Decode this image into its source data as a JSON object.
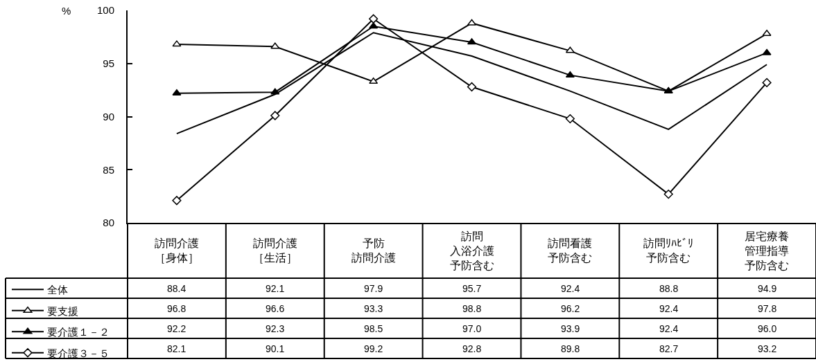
{
  "chart_data": {
    "type": "line",
    "ylabel": "%",
    "categories": [
      "訪問介護［身体］",
      "訪問介護［生活］",
      "予防訪問介護",
      "訪問入浴介護予防含む",
      "訪問看護予防含む",
      "訪問ﾘﾊﾋﾞﾘ予防含む",
      "居宅療養管理指導予防含む"
    ],
    "series": [
      {
        "name": "全体",
        "color": "#000000",
        "marker": "none",
        "values": [
          88.4,
          92.1,
          97.9,
          95.7,
          92.4,
          88.8,
          94.9
        ],
        "value_labels": [
          "88.4",
          "92.1",
          "97.9",
          "95.7",
          "92.4",
          "88.8",
          "94.9"
        ]
      },
      {
        "name": "要支援",
        "color": "#000000",
        "marker": "triangle-open",
        "values": [
          96.8,
          96.6,
          93.3,
          98.8,
          96.2,
          92.4,
          97.8
        ],
        "value_labels": [
          "96.8",
          "96.6",
          "93.3",
          "98.8",
          "96.2",
          "92.4",
          "97.8"
        ]
      },
      {
        "name": "要介護１－２",
        "color": "#000000",
        "marker": "triangle",
        "values": [
          92.2,
          92.3,
          98.5,
          97.0,
          93.9,
          92.4,
          96.0
        ],
        "value_labels": [
          "92.2",
          "92.3",
          "98.5",
          "97.0",
          "93.9",
          "92.4",
          "96.0"
        ]
      },
      {
        "name": "要介護３－５",
        "color": "#000000",
        "marker": "diamond-open",
        "values": [
          82.1,
          90.1,
          99.2,
          92.8,
          89.8,
          82.7,
          93.2
        ],
        "value_labels": [
          "82.1",
          "90.1",
          "99.2",
          "92.8",
          "89.8",
          "82.7",
          "93.2"
        ]
      }
    ],
    "ylim": [
      80,
      100
    ],
    "yticks": [
      80,
      85,
      90,
      95,
      100
    ],
    "legend": "bottom left",
    "line_style": "solid"
  }
}
